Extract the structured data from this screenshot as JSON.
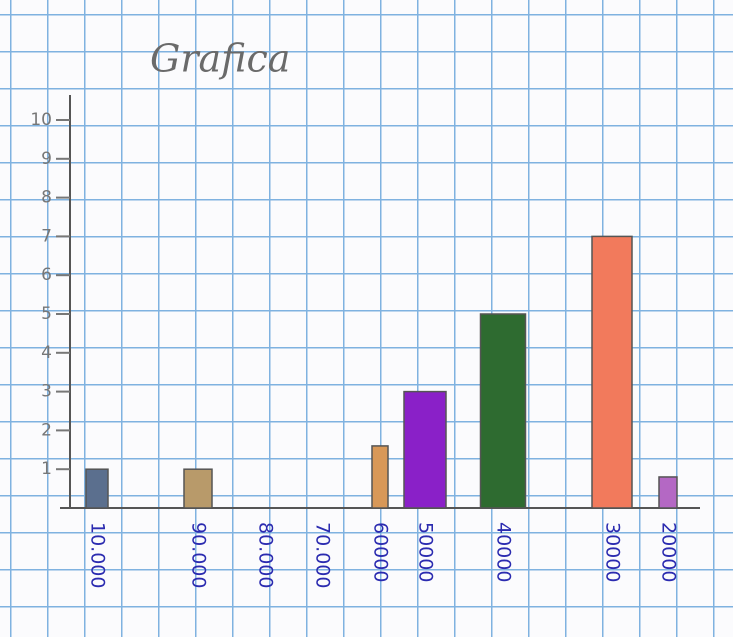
{
  "chart_data": {
    "type": "bar",
    "title": "Grafica",
    "categories": [
      "10.000",
      "90.000",
      "80.000",
      "70.000",
      "60000",
      "50000",
      "40000",
      "30000",
      "20000"
    ],
    "values": [
      1,
      1,
      null,
      null,
      1.6,
      3,
      5,
      7,
      0.8
    ],
    "colors": [
      "#5b6f8e",
      "#b89a6a",
      null,
      null,
      "#d89858",
      "#8a20c8",
      "#2e6b30",
      "#f27a5c",
      "#b468c4"
    ],
    "ylim": [
      0,
      10
    ],
    "yticks": [
      1,
      2,
      3,
      4,
      5,
      6,
      7,
      8,
      9,
      10
    ]
  }
}
